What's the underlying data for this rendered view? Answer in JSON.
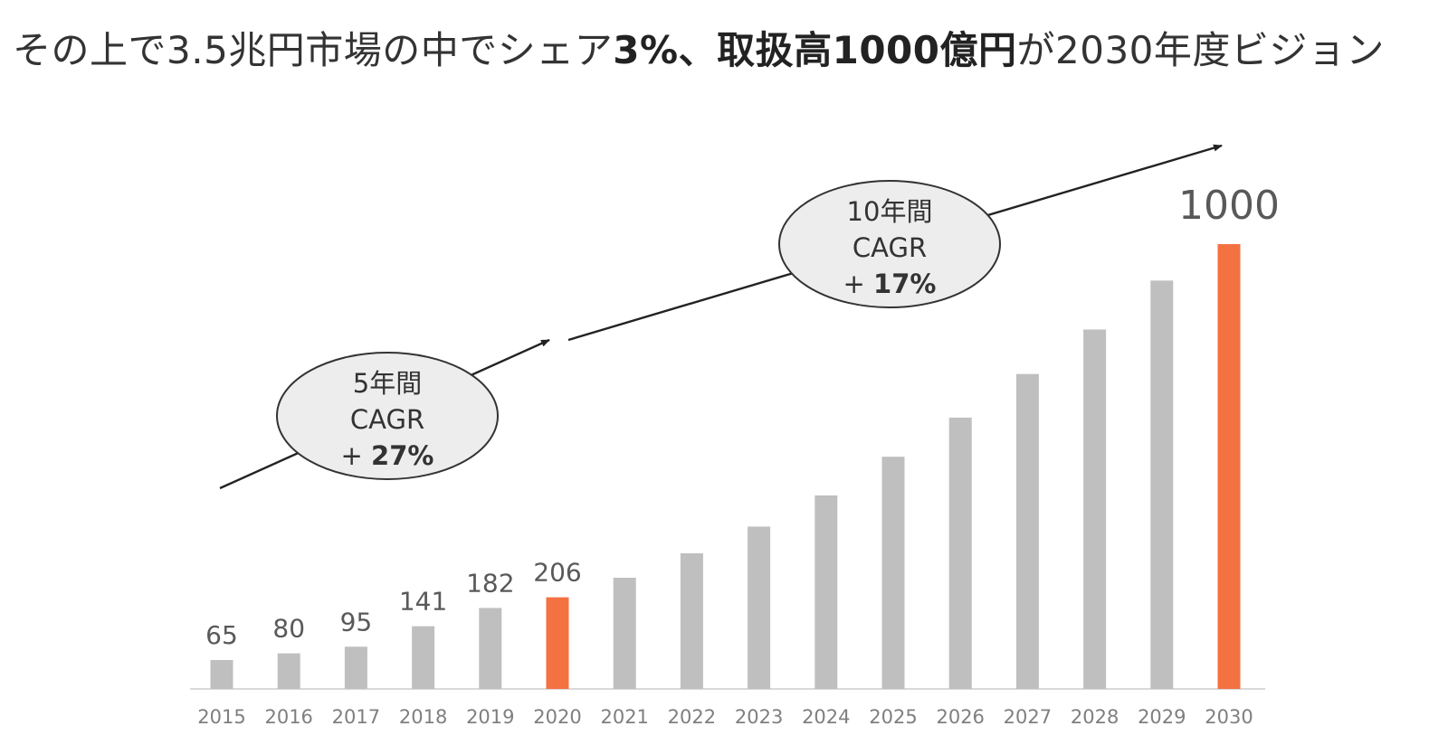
{
  "title": {
    "part1": "その上で3.5兆円市場の中でシェア",
    "part2_bold": "3%、取扱高1000億円",
    "part3": "が2030年度ビジョン"
  },
  "colors": {
    "bar_default": "#bfbfbf",
    "bar_highlight": "#f47142",
    "label_text": "#595959",
    "axis_line": "#d9d9d9",
    "bubble_fill": "#ededed",
    "bubble_stroke": "#333333",
    "arrow": "#222222"
  },
  "chart_data": {
    "type": "bar",
    "categories": [
      "2015",
      "2016",
      "2017",
      "2018",
      "2019",
      "2020",
      "2021",
      "2022",
      "2023",
      "2024",
      "2025",
      "2026",
      "2027",
      "2028",
      "2029",
      "2030"
    ],
    "values": [
      65,
      80,
      95,
      141,
      182,
      206,
      250,
      305,
      365,
      435,
      522,
      610,
      708,
      808,
      918,
      1000
    ],
    "highlighted": [
      "2020",
      "2030"
    ],
    "labeled": {
      "2015": "65",
      "2016": "80",
      "2017": "95",
      "2018": "141",
      "2019": "182",
      "2020": "206",
      "2030": "1000"
    },
    "ylim": [
      0,
      1000
    ],
    "grid": false,
    "annotations": [
      {
        "line1": "5年間",
        "line2": "CAGR",
        "line3_prefix": "+ ",
        "line3_bold": "27%"
      },
      {
        "line1": "10年間",
        "line2": "CAGR",
        "line3_prefix": "+ ",
        "line3_bold": "17%"
      }
    ]
  }
}
